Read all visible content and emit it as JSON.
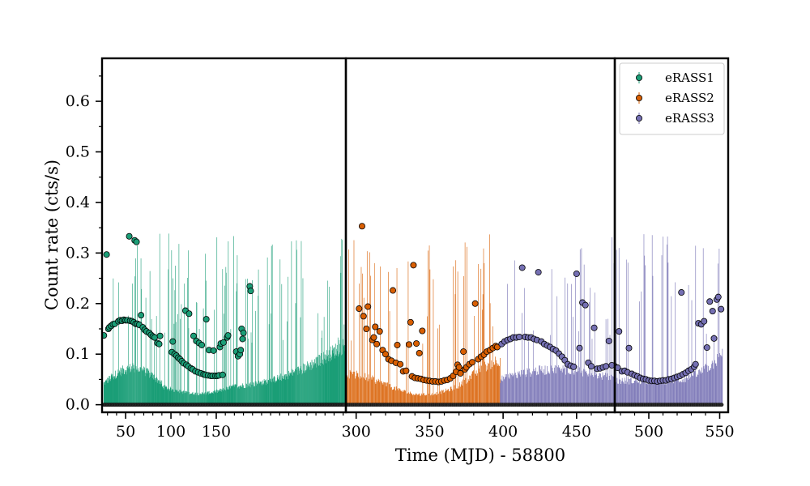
{
  "chart_data": {
    "type": "scatter",
    "title": "",
    "xlabel": "Time (MJD) - 58800",
    "ylabel": "Count rate (cts/s)",
    "ylim": [
      -0.015,
      0.685
    ],
    "grid": false,
    "legend_position": "top-right",
    "panels": [
      {
        "xlim": [
          24,
          293
        ],
        "x_ticks": [
          50,
          100,
          150
        ],
        "x_tick_labels": [
          "50",
          "100",
          "150"
        ]
      },
      {
        "xlim": [
          293,
          476
        ],
        "x_ticks": [
          300,
          350,
          400,
          450
        ],
        "x_tick_labels": [
          "300",
          "350",
          "400",
          "450"
        ]
      },
      {
        "xlim": [
          476,
          556
        ],
        "x_ticks": [
          500,
          550
        ],
        "x_tick_labels": [
          "500",
          "550"
        ]
      }
    ],
    "y_ticks": [
      0.0,
      0.1,
      0.2,
      0.3,
      0.4,
      0.5,
      0.6
    ],
    "y_tick_labels": [
      "0.0",
      "0.1",
      "0.2",
      "0.3",
      "0.4",
      "0.5",
      "0.6"
    ],
    "series": [
      {
        "name": "eRASS1",
        "color": "#1b9e77",
        "x_range": [
          26,
          292
        ],
        "points": [
          [
            26,
            0.137
          ],
          [
            29,
            0.297
          ],
          [
            31,
            0.15
          ],
          [
            32,
            0.153
          ],
          [
            34,
            0.156
          ],
          [
            36,
            0.159
          ],
          [
            38,
            0.16
          ],
          [
            42,
            0.165
          ],
          [
            44,
            0.167
          ],
          [
            46,
            0.166
          ],
          [
            48,
            0.168
          ],
          [
            50,
            0.167
          ],
          [
            52,
            0.167
          ],
          [
            54,
            0.333
          ],
          [
            55,
            0.166
          ],
          [
            57,
            0.165
          ],
          [
            59,
            0.163
          ],
          [
            60,
            0.325
          ],
          [
            61,
            0.16
          ],
          [
            62,
            0.322
          ],
          [
            63,
            0.16
          ],
          [
            65,
            0.158
          ],
          [
            67,
            0.177
          ],
          [
            69,
            0.153
          ],
          [
            71,
            0.148
          ],
          [
            73,
            0.145
          ],
          [
            76,
            0.142
          ],
          [
            78,
            0.138
          ],
          [
            80,
            0.135
          ],
          [
            82,
            0.133
          ],
          [
            85,
            0.122
          ],
          [
            87,
            0.12
          ],
          [
            88,
            0.136
          ],
          [
            101,
            0.104
          ],
          [
            102,
            0.125
          ],
          [
            104,
            0.1
          ],
          [
            106,
            0.097
          ],
          [
            108,
            0.093
          ],
          [
            110,
            0.09
          ],
          [
            112,
            0.086
          ],
          [
            114,
            0.082
          ],
          [
            116,
            0.186
          ],
          [
            117,
            0.079
          ],
          [
            119,
            0.076
          ],
          [
            120,
            0.18
          ],
          [
            122,
            0.072
          ],
          [
            124,
            0.07
          ],
          [
            125,
            0.136
          ],
          [
            127,
            0.066
          ],
          [
            128,
            0.126
          ],
          [
            130,
            0.064
          ],
          [
            131,
            0.122
          ],
          [
            133,
            0.062
          ],
          [
            134,
            0.118
          ],
          [
            136,
            0.06
          ],
          [
            138,
            0.059
          ],
          [
            139,
            0.169
          ],
          [
            141,
            0.058
          ],
          [
            142,
            0.108
          ],
          [
            144,
            0.057
          ],
          [
            146,
            0.057
          ],
          [
            147,
            0.107
          ],
          [
            149,
            0.057
          ],
          [
            151,
            0.057
          ],
          [
            153,
            0.058
          ],
          [
            154,
            0.114
          ],
          [
            155,
            0.121
          ],
          [
            157,
            0.059
          ],
          [
            158,
            0.123
          ],
          [
            162,
            0.133
          ],
          [
            163,
            0.137
          ],
          [
            172,
            0.105
          ],
          [
            174,
            0.096
          ],
          [
            176,
            0.1
          ],
          [
            177,
            0.108
          ],
          [
            178,
            0.15
          ],
          [
            179,
            0.13
          ],
          [
            180,
            0.142
          ],
          [
            187,
            0.234
          ],
          [
            188,
            0.225
          ]
        ]
      },
      {
        "name": "eRASS2",
        "color": "#d95f02",
        "x_range": [
          294,
          398
        ],
        "points": [
          [
            302,
            0.19
          ],
          [
            304,
            0.353
          ],
          [
            305,
            0.175
          ],
          [
            307,
            0.15
          ],
          [
            308,
            0.194
          ],
          [
            311,
            0.128
          ],
          [
            312,
            0.133
          ],
          [
            313,
            0.154
          ],
          [
            314,
            0.12
          ],
          [
            316,
            0.145
          ],
          [
            318,
            0.108
          ],
          [
            320,
            0.1
          ],
          [
            322,
            0.09
          ],
          [
            324,
            0.087
          ],
          [
            325,
            0.226
          ],
          [
            327,
            0.083
          ],
          [
            328,
            0.118
          ],
          [
            330,
            0.08
          ],
          [
            332,
            0.066
          ],
          [
            334,
            0.067
          ],
          [
            336,
            0.119
          ],
          [
            337,
            0.163
          ],
          [
            338,
            0.056
          ],
          [
            339,
            0.276
          ],
          [
            340,
            0.053
          ],
          [
            341,
            0.121
          ],
          [
            342,
            0.052
          ],
          [
            343,
            0.102
          ],
          [
            344,
            0.051
          ],
          [
            345,
            0.146
          ],
          [
            346,
            0.049
          ],
          [
            348,
            0.048
          ],
          [
            350,
            0.047
          ],
          [
            352,
            0.046
          ],
          [
            354,
            0.046
          ],
          [
            356,
            0.045
          ],
          [
            358,
            0.046
          ],
          [
            360,
            0.048
          ],
          [
            362,
            0.049
          ],
          [
            364,
            0.052
          ],
          [
            366,
            0.057
          ],
          [
            368,
            0.065
          ],
          [
            369,
            0.079
          ],
          [
            370,
            0.074
          ],
          [
            371,
            0.062
          ],
          [
            373,
            0.105
          ],
          [
            374,
            0.07
          ],
          [
            375,
            0.074
          ],
          [
            377,
            0.08
          ],
          [
            379,
            0.084
          ],
          [
            381,
            0.2
          ],
          [
            383,
            0.09
          ],
          [
            385,
            0.095
          ],
          [
            387,
            0.099
          ],
          [
            389,
            0.105
          ],
          [
            391,
            0.108
          ],
          [
            393,
            0.112
          ],
          [
            395,
            0.116
          ],
          [
            396,
            0.114
          ]
        ]
      },
      {
        "name": "eRASS3",
        "color": "#7570b3",
        "x_range": [
          398,
          552
        ],
        "points": [
          [
            399,
            0.12
          ],
          [
            401,
            0.125
          ],
          [
            403,
            0.128
          ],
          [
            405,
            0.13
          ],
          [
            407,
            0.133
          ],
          [
            409,
            0.133
          ],
          [
            411,
            0.134
          ],
          [
            413,
            0.271
          ],
          [
            415,
            0.134
          ],
          [
            417,
            0.133
          ],
          [
            419,
            0.133
          ],
          [
            421,
            0.13
          ],
          [
            423,
            0.128
          ],
          [
            424,
            0.262
          ],
          [
            426,
            0.125
          ],
          [
            428,
            0.12
          ],
          [
            430,
            0.117
          ],
          [
            432,
            0.114
          ],
          [
            434,
            0.11
          ],
          [
            436,
            0.107
          ],
          [
            438,
            0.101
          ],
          [
            440,
            0.095
          ],
          [
            442,
            0.088
          ],
          [
            444,
            0.08
          ],
          [
            446,
            0.077
          ],
          [
            448,
            0.075
          ],
          [
            450,
            0.259
          ],
          [
            452,
            0.112
          ],
          [
            454,
            0.202
          ],
          [
            456,
            0.197
          ],
          [
            458,
            0.083
          ],
          [
            460,
            0.076
          ],
          [
            462,
            0.152
          ],
          [
            464,
            0.071
          ],
          [
            466,
            0.072
          ],
          [
            468,
            0.074
          ],
          [
            470,
            0.076
          ],
          [
            472,
            0.126
          ],
          [
            474,
            0.078
          ],
          [
            476,
            0.076
          ],
          [
            478,
            0.073
          ],
          [
            479,
            0.145
          ],
          [
            481,
            0.066
          ],
          [
            483,
            0.067
          ],
          [
            485,
            0.064
          ],
          [
            486,
            0.112
          ],
          [
            488,
            0.061
          ],
          [
            490,
            0.058
          ],
          [
            492,
            0.056
          ],
          [
            494,
            0.053
          ],
          [
            496,
            0.051
          ],
          [
            498,
            0.05
          ],
          [
            500,
            0.048
          ],
          [
            502,
            0.047
          ],
          [
            504,
            0.047
          ],
          [
            506,
            0.046
          ],
          [
            508,
            0.047
          ],
          [
            510,
            0.048
          ],
          [
            512,
            0.048
          ],
          [
            514,
            0.05
          ],
          [
            516,
            0.051
          ],
          [
            518,
            0.053
          ],
          [
            520,
            0.055
          ],
          [
            522,
            0.057
          ],
          [
            523,
            0.222
          ],
          [
            524,
            0.06
          ],
          [
            526,
            0.063
          ],
          [
            528,
            0.067
          ],
          [
            530,
            0.07
          ],
          [
            532,
            0.075
          ],
          [
            533,
            0.08
          ],
          [
            535,
            0.161
          ],
          [
            537,
            0.159
          ],
          [
            539,
            0.165
          ],
          [
            541,
            0.113
          ],
          [
            543,
            0.204
          ],
          [
            545,
            0.185
          ],
          [
            546,
            0.131
          ],
          [
            548,
            0.208
          ],
          [
            549,
            0.213
          ],
          [
            551,
            0.189
          ]
        ]
      }
    ]
  }
}
